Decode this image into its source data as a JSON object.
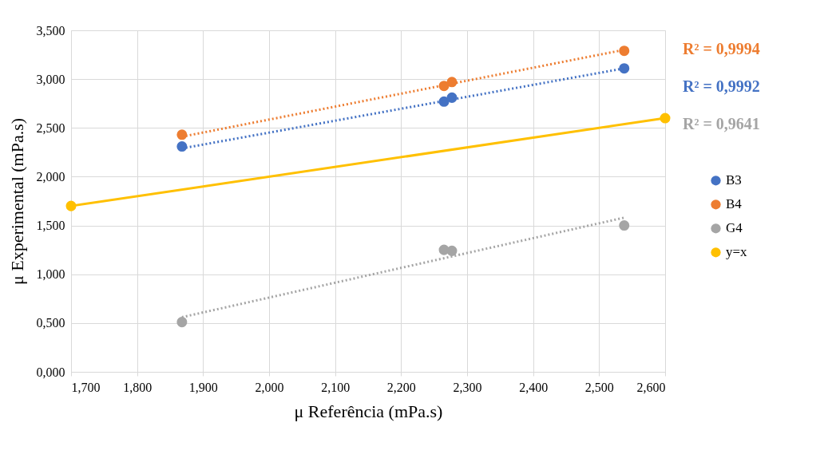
{
  "chart_data": {
    "type": "scatter",
    "xlabel": "μ Referência (mPa.s)",
    "ylabel": "μ Experimental (mPa.s)",
    "xlim": [
      1.7,
      2.6
    ],
    "ylim": [
      0,
      3.5
    ],
    "xticks": [
      {
        "value": 1.7,
        "label": "1,700"
      },
      {
        "value": 1.8,
        "label": "1,800"
      },
      {
        "value": 1.9,
        "label": "1,900"
      },
      {
        "value": 2.0,
        "label": "2,000"
      },
      {
        "value": 2.1,
        "label": "2,100"
      },
      {
        "value": 2.2,
        "label": "2,200"
      },
      {
        "value": 2.3,
        "label": "2,300"
      },
      {
        "value": 2.4,
        "label": "2,400"
      },
      {
        "value": 2.5,
        "label": "2,500"
      },
      {
        "value": 2.6,
        "label": "2,600"
      }
    ],
    "yticks": [
      {
        "value": 0,
        "label": "0,000"
      },
      {
        "value": 0.5,
        "label": "0,500"
      },
      {
        "value": 1.0,
        "label": "1,000"
      },
      {
        "value": 1.5,
        "label": "1,500"
      },
      {
        "value": 2.0,
        "label": "2,000"
      },
      {
        "value": 2.5,
        "label": "2,500"
      },
      {
        "value": 3.0,
        "label": "3,000"
      },
      {
        "value": 3.5,
        "label": "3,500"
      }
    ],
    "grid": true,
    "legend": "right",
    "marker": "circle",
    "annotations": [
      "R² = 0,9994",
      "R² = 0,9992",
      "R² = 0,9641"
    ],
    "series": [
      {
        "name": "B3",
        "color": "#4472c4",
        "x": [
          1.868,
          2.265,
          2.277,
          2.538
        ],
        "values": [
          2.31,
          2.77,
          2.81,
          3.11
        ]
      },
      {
        "name": "B4",
        "color": "#ed7d31",
        "x": [
          1.868,
          2.265,
          2.277,
          2.538
        ],
        "values": [
          2.43,
          2.93,
          2.97,
          3.29
        ]
      },
      {
        "name": "G4",
        "color": "#a5a5a5",
        "x": [
          1.868,
          2.265,
          2.277,
          2.538
        ],
        "values": [
          0.51,
          1.25,
          1.24,
          1.5
        ]
      },
      {
        "name": "y=x",
        "type": "line",
        "line_style": "solid",
        "color": "#ffc000",
        "x": [
          1.7,
          2.6
        ],
        "values": [
          1.7,
          2.6
        ]
      },
      {
        "type": "line",
        "line_style": "dotted",
        "marker": "none",
        "color": "#ed7d31",
        "x": [
          1.868,
          2.538
        ],
        "values": [
          2.41,
          3.3
        ]
      },
      {
        "type": "line",
        "line_style": "dotted",
        "marker": "none",
        "color": "#4472c4",
        "x": [
          1.868,
          2.538
        ],
        "values": [
          2.29,
          3.11
        ]
      },
      {
        "type": "line",
        "line_style": "dotted",
        "marker": "none",
        "color": "#a5a5a5",
        "x": [
          1.868,
          2.538
        ],
        "values": [
          0.56,
          1.58
        ]
      }
    ]
  }
}
